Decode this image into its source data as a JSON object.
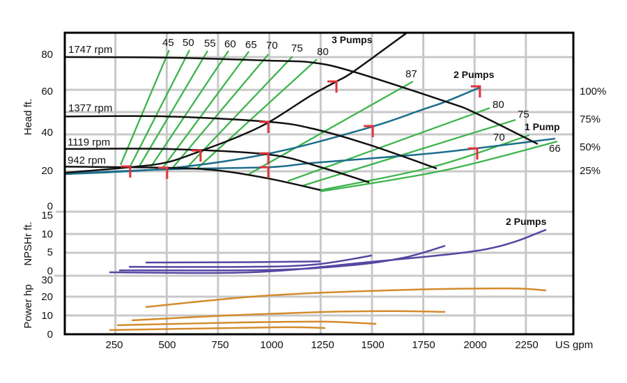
{
  "chart_data": {
    "type": "line",
    "xlabel": "US gpm",
    "x_ticks": [
      "250",
      "500",
      "750",
      "1000",
      "1250",
      "1500",
      "1750",
      "2000",
      "2250"
    ],
    "xlim": [
      0,
      2500
    ],
    "grid": true,
    "panels": {
      "head": {
        "ylabel": "Head ft.",
        "y_ticks": [
          "80",
          "60",
          "40",
          "20",
          "0"
        ],
        "right_ticks": [
          "100%",
          "75%",
          "50%",
          "25%"
        ],
        "speed_curves": [
          {
            "name": "1747 rpm",
            "points": [
              [
                0,
                79.3
              ],
              [
                500,
                79
              ],
              [
                1000,
                77.4
              ],
              [
                1215,
                76.3
              ],
              [
                1409,
                71.5
              ],
              [
                1860,
                55.6
              ],
              [
                2003,
                49.6
              ],
              [
                2308,
                33
              ]
            ]
          },
          {
            "name": "1377 rpm",
            "points": [
              [
                0,
                47.7
              ],
              [
                500,
                47.7
              ],
              [
                1000,
                44.8
              ],
              [
                1215,
                41.1
              ],
              [
                1487,
                32.6
              ],
              [
                1816,
                20
              ]
            ]
          },
          {
            "name": "1119 rpm",
            "points": [
              [
                0,
                30.4
              ],
              [
                500,
                30.4
              ],
              [
                1000,
                27.4
              ],
              [
                1250,
                20.7
              ],
              [
                1487,
                12.6
              ]
            ]
          },
          {
            "name": "942 rpm",
            "points": [
              [
                0,
                21
              ],
              [
                500,
                20.4
              ],
              [
                750,
                19
              ],
              [
                1000,
                14.6
              ],
              [
                1250,
                8.5
              ]
            ]
          }
        ],
        "system_curve": {
          "label": "3 Pumps",
          "points": [
            [
              0,
              17.7
            ],
            [
              322,
              20.7
            ],
            [
              502,
              23.3
            ],
            [
              665,
              29.3
            ],
            [
              843,
              36.7
            ],
            [
              1000,
              44.8
            ],
            [
              1205,
              59
            ],
            [
              1327,
              66.3
            ],
            [
              1409,
              71.5
            ],
            [
              1670,
              92.2
            ]
          ]
        },
        "pump_curves": [
          {
            "label": "2 Pumps",
            "points": [
              [
                0,
                17
              ],
              [
                502,
                20
              ],
              [
                1000,
                28
              ],
              [
                1487,
                41.8
              ],
              [
                1750,
                51.5
              ],
              [
                1860,
                55.6
              ],
              [
                2030,
                63.3
              ]
            ]
          },
          {
            "label": "1 Pump",
            "points": [
              [
                0,
                17.2
              ],
              [
                502,
                19.6
              ],
              [
                1000,
                20.7
              ],
              [
                1215,
                23
              ],
              [
                1724,
                27.4
              ],
              [
                2006,
                30.7
              ],
              [
                2393,
                35.9
              ]
            ]
          }
        ],
        "efficiency_lines": [
          {
            "label": "45",
            "points": [
              [
                275,
                21.9
              ],
              [
                512,
                83
              ]
            ]
          },
          {
            "label": "50",
            "points": [
              [
                322,
                21.1
              ],
              [
                611,
                83
              ]
            ]
          },
          {
            "label": "55",
            "points": [
              [
                366,
                21.1
              ],
              [
                699,
                82.6
              ]
            ]
          },
          {
            "label": "60",
            "points": [
              [
                424,
                21.1
              ],
              [
                801,
                82.6
              ]
            ]
          },
          {
            "label": "65",
            "points": [
              [
                478,
                20
              ],
              [
                900,
                82.2
              ]
            ]
          },
          {
            "label": "70",
            "points": [
              [
                526,
                20
              ],
              [
                995,
                80.7
              ]
            ]
          },
          {
            "label": "75",
            "points": [
              [
                594,
                20
              ],
              [
                1113,
                79.6
              ]
            ]
          },
          {
            "label": "80",
            "points": [
              [
                648,
                20
              ],
              [
                1232,
                78.1
              ]
            ]
          },
          {
            "label": "87",
            "points": [
              [
                900,
                17
              ],
              [
                1700,
                66.3
              ]
            ]
          },
          {
            "label": "80",
            "points": [
              [
                1090,
                13.3
              ],
              [
                2074,
                52.2
              ]
            ]
          },
          {
            "label": "75",
            "points": [
              [
                1157,
                10.7
              ],
              [
                2200,
                45.9
              ]
            ]
          },
          {
            "label": "70",
            "points": [
              [
                1250,
                8.5
              ],
              [
                1800,
                21
              ],
              [
                2267,
                37.8
              ]
            ]
          },
          {
            "label": "66",
            "points": [
              [
                1250,
                7.8
              ],
              [
                1850,
                19
              ],
              [
                2403,
                34.4
              ]
            ]
          }
        ],
        "markers": [
          [
            322,
            21.1
          ],
          [
            502,
            20.4
          ],
          [
            665,
            29.6
          ],
          [
            995,
            44.8
          ],
          [
            995,
            28.1
          ],
          [
            995,
            20.7
          ],
          [
            1327,
            66.3
          ],
          [
            1504,
            42.6
          ],
          [
            2026,
            63.7
          ],
          [
            2013,
            30.7
          ]
        ]
      },
      "npshr": {
        "ylabel": "NPSHr ft.",
        "y_ticks": [
          "15",
          "10",
          "5",
          "0"
        ],
        "label": "2 Pumps",
        "curves": [
          [
            [
              221,
              0
            ],
            [
              910,
              0
            ],
            [
              1463,
              2.5
            ],
            [
              2054,
              5.9
            ],
            [
              2349,
              10.9
            ]
          ],
          [
            [
              268,
              0.5
            ],
            [
              1000,
              0.6
            ],
            [
              1400,
              1.8
            ],
            [
              1660,
              3.8
            ],
            [
              1857,
              6.8
            ]
          ],
          [
            [
              316,
              1.4
            ],
            [
              900,
              1.4
            ],
            [
              1225,
              2
            ],
            [
              1500,
              4.3
            ]
          ],
          [
            [
              397,
              2.5
            ],
            [
              900,
              2.6
            ],
            [
              1250,
              2.8
            ]
          ]
        ]
      },
      "power": {
        "ylabel": "Power hp",
        "y_ticks": [
          "30",
          "20",
          "10",
          "0"
        ],
        "curves": [
          [
            [
              397,
              14.5
            ],
            [
              968,
              20.4
            ],
            [
              1561,
              23.3
            ],
            [
              2152,
              24.4
            ],
            [
              2349,
              23.3
            ]
          ],
          [
            [
              329,
              7.4
            ],
            [
              800,
              10
            ],
            [
              1250,
              11.8
            ],
            [
              1600,
              12.3
            ],
            [
              1857,
              11.9
            ]
          ],
          [
            [
              258,
              4.8
            ],
            [
              869,
              6.3
            ],
            [
              1266,
              6.7
            ],
            [
              1521,
              5.5
            ]
          ],
          [
            [
              221,
              2.2
            ],
            [
              1029,
              3.7
            ],
            [
              1273,
              3.3
            ]
          ]
        ]
      }
    },
    "colors": {
      "grid": "#c8c8c8",
      "speed": "#111111",
      "efficiency": "#3cb44b",
      "pump": "#1c6e8c",
      "marker": "#e0333a",
      "npshr": "#5646a3",
      "power": "#d38b2c"
    }
  }
}
